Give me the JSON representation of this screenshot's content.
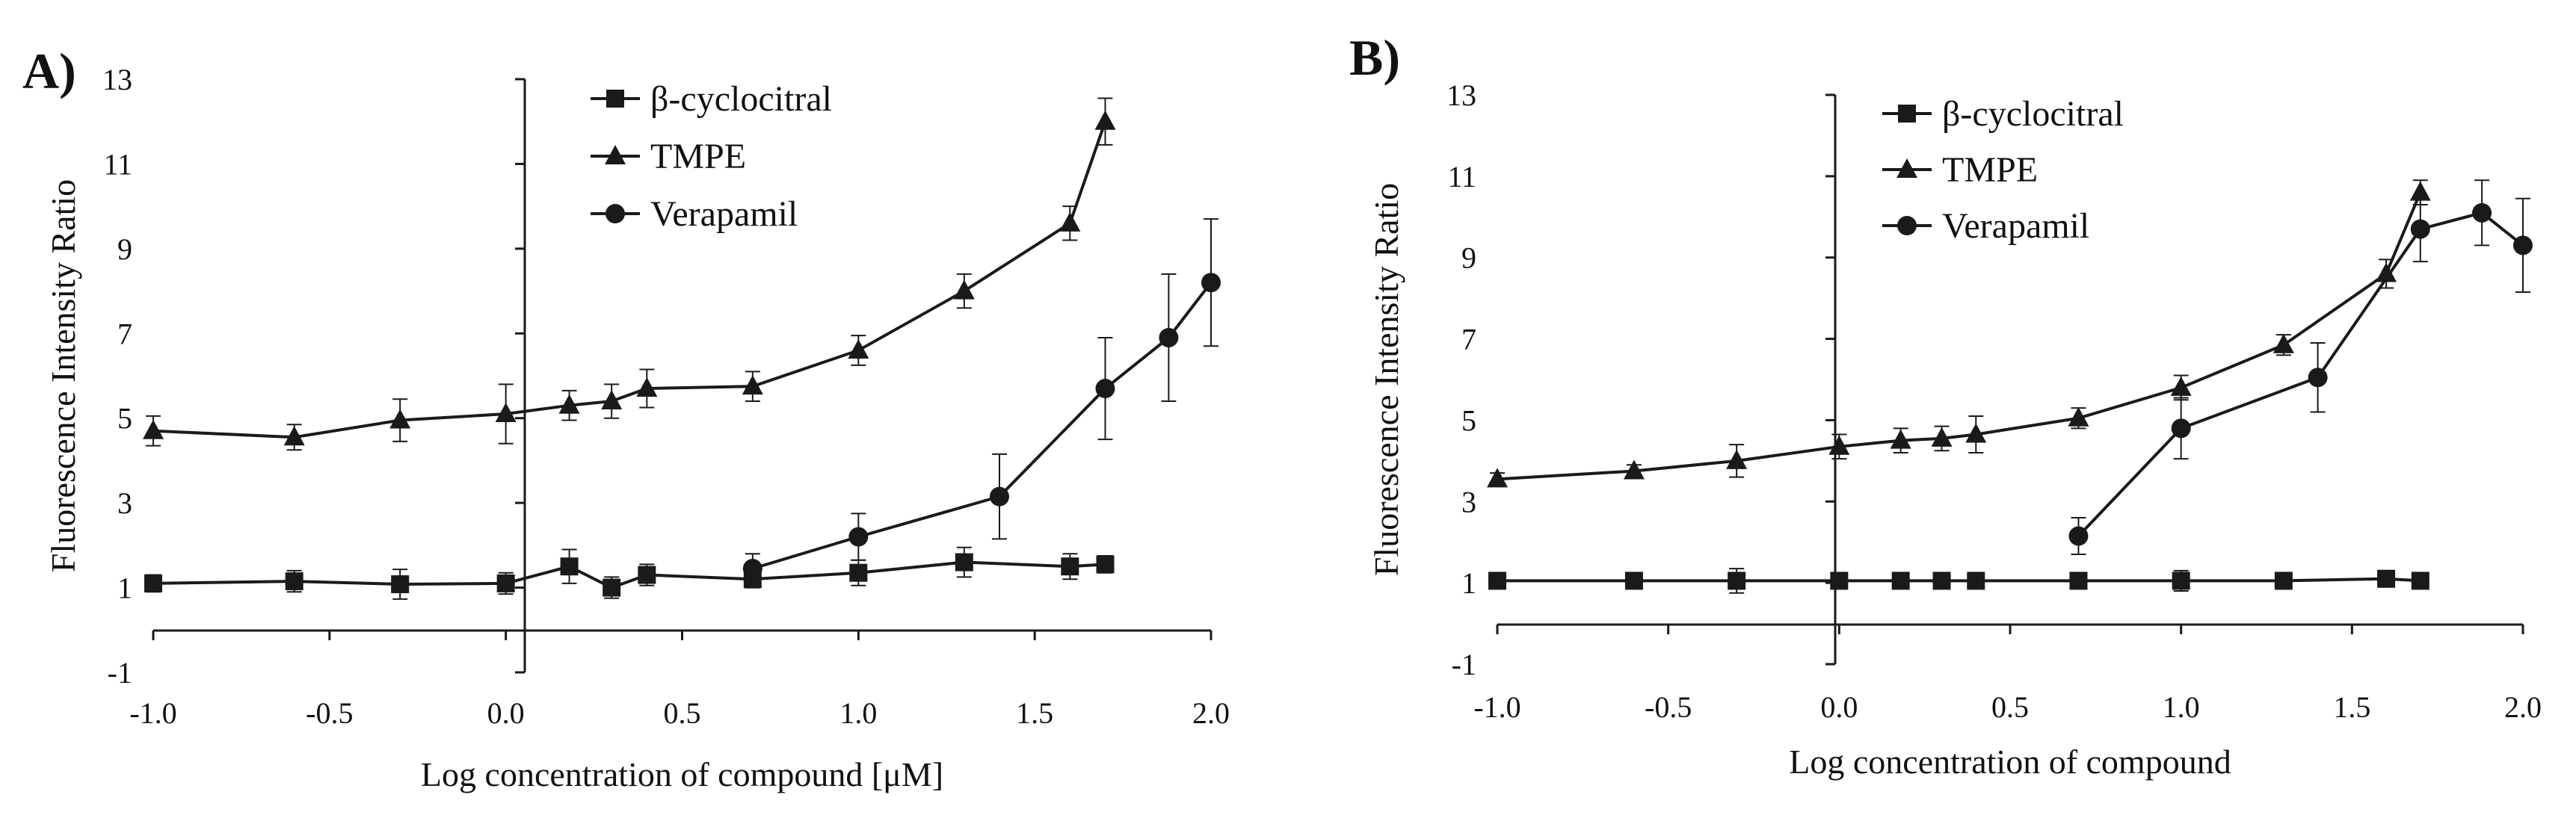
{
  "colors": {
    "ink": "#1a1a1a",
    "background": "#ffffff"
  },
  "chart_data": [
    {
      "panel": "A)",
      "type": "line",
      "xlabel": "Log concentration of compound [μM]",
      "ylabel": "Fluorescence Intensity Ratio",
      "xlim": [
        -1.0,
        2.0
      ],
      "ylim": [
        -1,
        13
      ],
      "xticks": [
        "-1.0",
        "-0.5",
        "0.0",
        "0.5",
        "1.0",
        "1.5",
        "2.0"
      ],
      "yticks": [
        "-1",
        "1",
        "3",
        "5",
        "7",
        "9",
        "11",
        "13"
      ],
      "legend": "top-center",
      "grid": false,
      "series": [
        {
          "name": "β-cyclocitral",
          "marker": "square",
          "x": [
            -1.0,
            -0.6,
            -0.3,
            0.0,
            0.18,
            0.3,
            0.4,
            0.7,
            1.0,
            1.3,
            1.6,
            1.7
          ],
          "y": [
            1.1,
            1.15,
            1.08,
            1.1,
            1.5,
            1.0,
            1.3,
            1.2,
            1.35,
            1.6,
            1.5,
            1.55
          ],
          "err": [
            0.2,
            0.25,
            0.35,
            0.25,
            0.4,
            0.25,
            0.25,
            0.2,
            0.3,
            0.35,
            0.3,
            0.2
          ]
        },
        {
          "name": "TMPE",
          "marker": "triangle",
          "x": [
            -1.0,
            -0.6,
            -0.3,
            0.0,
            0.18,
            0.3,
            0.4,
            0.7,
            1.0,
            1.3,
            1.6,
            1.7
          ],
          "y": [
            4.7,
            4.55,
            4.95,
            5.1,
            5.3,
            5.4,
            5.7,
            5.75,
            6.6,
            8.0,
            9.6,
            12.0
          ],
          "err": [
            0.35,
            0.3,
            0.5,
            0.7,
            0.35,
            0.4,
            0.45,
            0.35,
            0.35,
            0.4,
            0.4,
            0.55
          ]
        },
        {
          "name": "Verapamil",
          "marker": "circle",
          "x": [
            0.7,
            1.0,
            1.4,
            1.7,
            1.88,
            2.0
          ],
          "y": [
            1.45,
            2.2,
            3.15,
            5.7,
            6.9,
            8.2
          ],
          "err": [
            0.35,
            0.55,
            1.0,
            1.2,
            1.5,
            1.5
          ]
        }
      ]
    },
    {
      "panel": "B)",
      "type": "line",
      "xlabel": "Log concentration of compound",
      "ylabel": "Fluorescence Intensity Ratio",
      "xlim": [
        -1.0,
        2.0
      ],
      "ylim": [
        -1,
        13
      ],
      "xticks": [
        "-1.0",
        "-0.5",
        "0.0",
        "0.5",
        "1.0",
        "1.5",
        "2.0"
      ],
      "yticks": [
        "-1",
        "1",
        "3",
        "5",
        "7",
        "9",
        "11",
        "13"
      ],
      "legend": "top-center",
      "grid": false,
      "series": [
        {
          "name": "β-cyclocitral",
          "marker": "square",
          "x": [
            -1.0,
            -0.6,
            -0.3,
            0.0,
            0.18,
            0.3,
            0.4,
            0.7,
            1.0,
            1.3,
            1.6,
            1.7
          ],
          "y": [
            1.05,
            1.05,
            1.05,
            1.05,
            1.05,
            1.05,
            1.05,
            1.05,
            1.05,
            1.05,
            1.1,
            1.05
          ],
          "err": [
            0.15,
            0.15,
            0.3,
            0.15,
            0.15,
            0.15,
            0.15,
            0.15,
            0.25,
            0.2,
            0.2,
            0.15
          ]
        },
        {
          "name": "TMPE",
          "marker": "triangle",
          "x": [
            -1.0,
            -0.6,
            -0.3,
            0.0,
            0.18,
            0.3,
            0.4,
            0.7,
            1.0,
            1.3,
            1.6,
            1.7
          ],
          "y": [
            3.55,
            3.75,
            4.0,
            4.35,
            4.5,
            4.55,
            4.65,
            5.05,
            5.8,
            6.85,
            8.6,
            10.6
          ],
          "err": [
            0.15,
            0.15,
            0.4,
            0.3,
            0.3,
            0.3,
            0.45,
            0.25,
            0.3,
            0.25,
            0.35,
            0.3
          ]
        },
        {
          "name": "Verapamil",
          "marker": "circle",
          "x": [
            0.7,
            1.0,
            1.4,
            1.7,
            1.88,
            2.0
          ],
          "y": [
            2.15,
            4.8,
            6.05,
            9.7,
            10.1,
            9.3
          ],
          "err": [
            0.45,
            0.75,
            0.85,
            0.8,
            0.8,
            1.15
          ]
        }
      ]
    }
  ]
}
